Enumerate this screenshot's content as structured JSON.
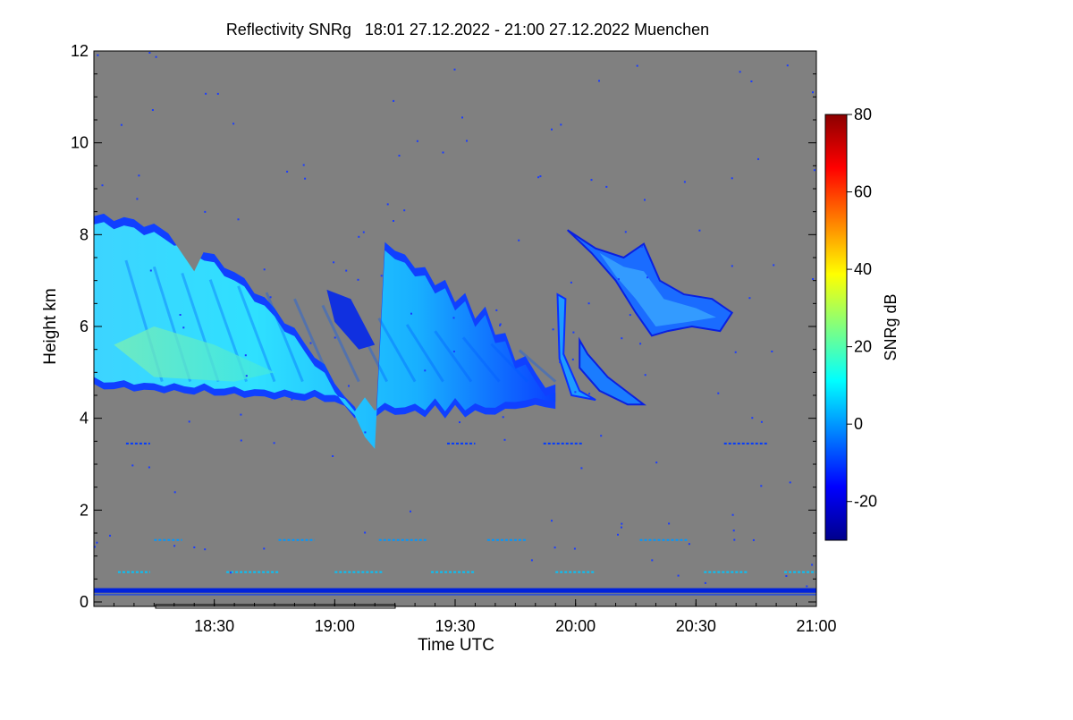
{
  "chart_data": {
    "type": "heatmap",
    "title": "Reflectivity SNRg   18:01 27.12.2022 - 21:00 27.12.2022 Muenchen",
    "xlabel": "Time UTC",
    "ylabel": "Height km",
    "x_range": [
      "18:01",
      "21:00"
    ],
    "y_range": [
      0,
      12
    ],
    "x_ticks": [
      "18:30",
      "19:00",
      "19:30",
      "20:00",
      "20:30",
      "21:00"
    ],
    "x_tick_minutes": [
      30,
      60,
      90,
      120,
      150,
      180
    ],
    "y_ticks": [
      "0",
      "2",
      "4",
      "6",
      "8",
      "10",
      "12"
    ],
    "colorbar": {
      "label": "SNRg dB",
      "range": [
        -30,
        80
      ],
      "ticks": [
        "-20",
        "0",
        "20",
        "40",
        "60",
        "80"
      ],
      "tick_values": [
        -20,
        0,
        20,
        40,
        60,
        80
      ],
      "colors": [
        "#00008b",
        "#0000ff",
        "#0080ff",
        "#00ffff",
        "#80ff80",
        "#ffff00",
        "#ff8000",
        "#ff0000",
        "#8b0000"
      ]
    },
    "background_color": "#808080",
    "features": [
      {
        "name": "main-cloud-layer",
        "time_start_min": 0,
        "time_end_min": 115,
        "base_km": 4.3,
        "top_km": 8.4,
        "snr_db": 10
      },
      {
        "name": "cloud-core",
        "time_start_min": 5,
        "time_end_min": 45,
        "base_km": 4.8,
        "top_km": 6.0,
        "snr_db": 20
      },
      {
        "name": "fall-streak",
        "time_start_min": 112,
        "time_end_min": 125,
        "base_km": 4.4,
        "top_km": 6.7,
        "snr_db": 5
      },
      {
        "name": "upper-cloud",
        "time_start_min": 118,
        "time_end_min": 159,
        "base_km": 5.7,
        "top_km": 8.1,
        "snr_db": 0
      },
      {
        "name": "lower-cloud-fragment",
        "time_start_min": 121,
        "time_end_min": 137,
        "base_km": 4.3,
        "top_km": 5.7,
        "snr_db": 0
      },
      {
        "name": "ground-clutter-line",
        "time_start_min": 0,
        "time_end_min": 180,
        "base_km": 0.2,
        "top_km": 0.3,
        "snr_db": -25
      },
      {
        "name": "low-clutter-band",
        "time_start_min": 0,
        "time_end_min": 180,
        "base_km": 0.6,
        "top_km": 0.7,
        "snr_db": 5
      },
      {
        "name": "mid-clutter-band",
        "time_start_min": 0,
        "time_end_min": 180,
        "base_km": 1.3,
        "top_km": 1.4,
        "snr_db": 0
      },
      {
        "name": "clutter-band-3-4km",
        "time_start_min": 0,
        "time_end_min": 180,
        "base_km": 3.4,
        "top_km": 3.5,
        "snr_db": -10
      }
    ]
  }
}
